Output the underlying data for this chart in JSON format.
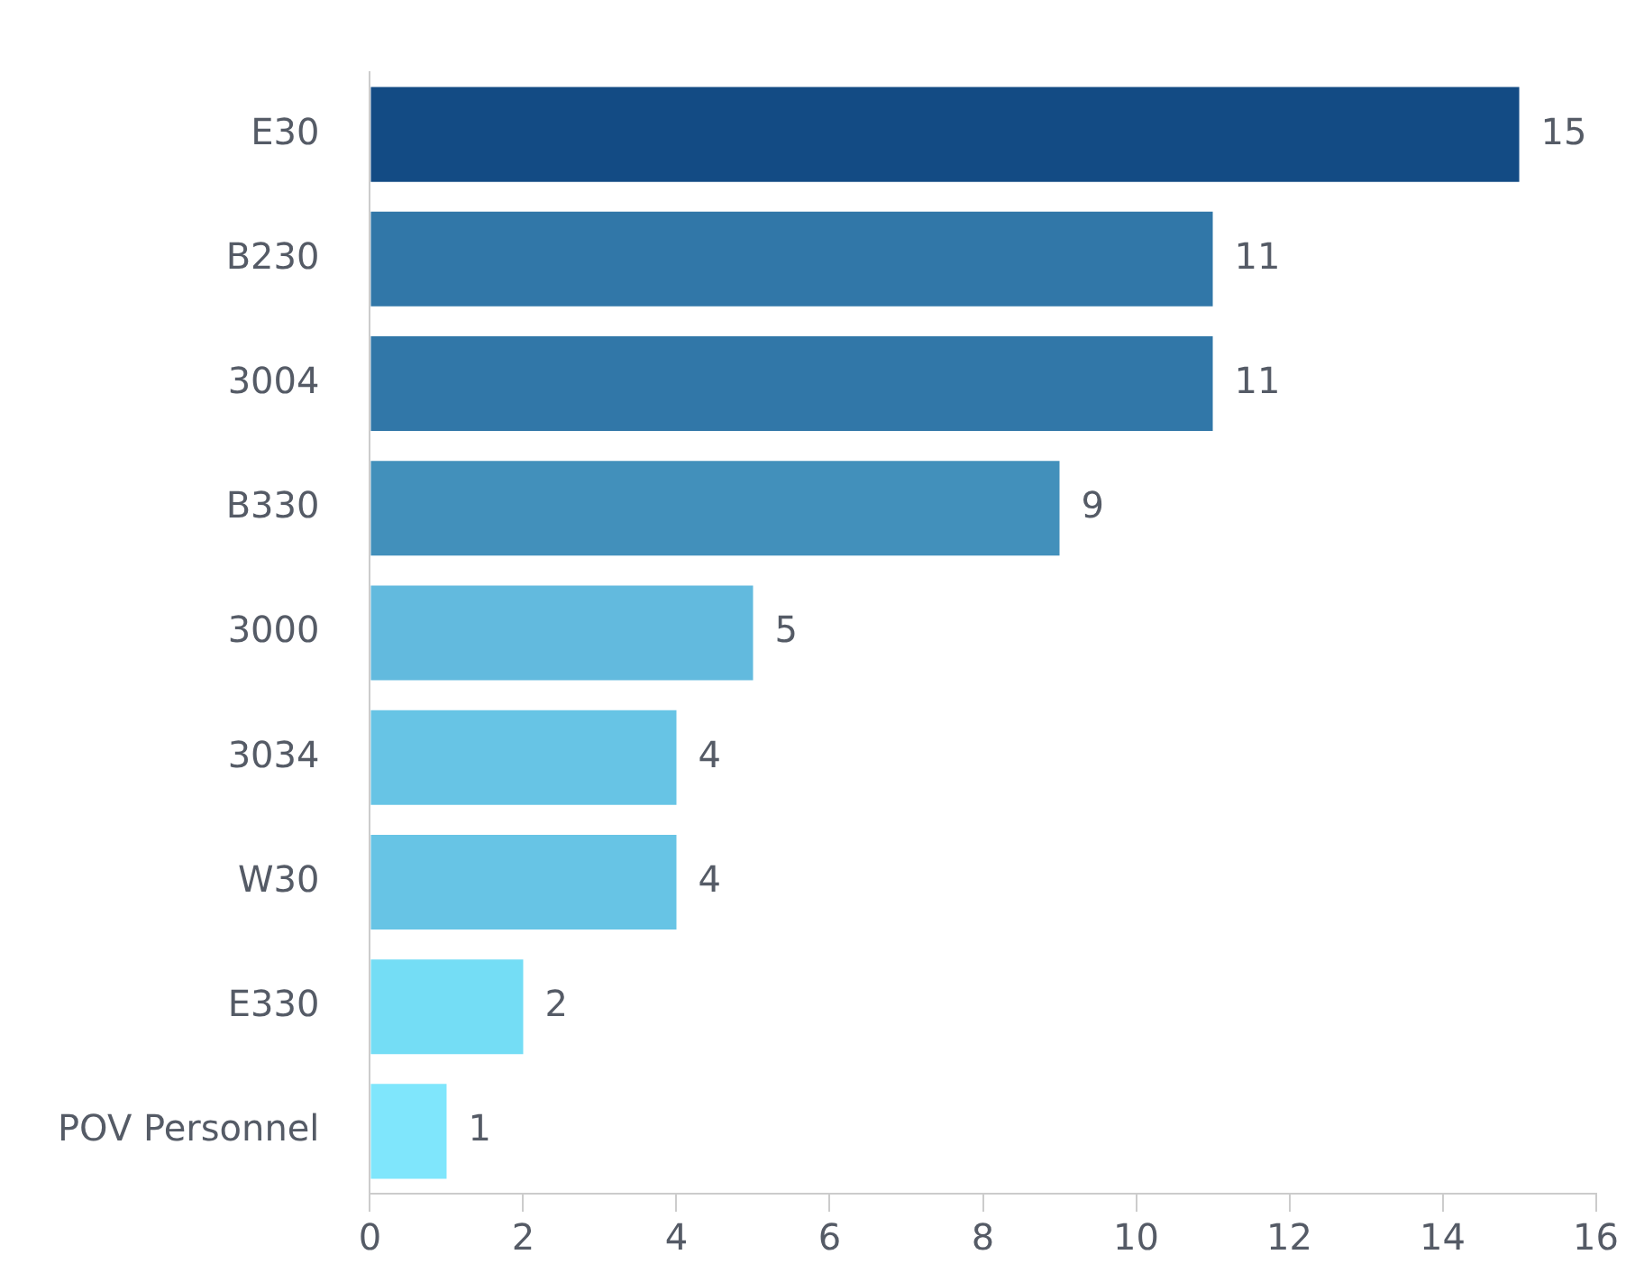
{
  "chart_data": {
    "type": "bar",
    "orientation": "horizontal",
    "categories": [
      "E30",
      "B230",
      "3004",
      "B330",
      "3000",
      "3034",
      "W30",
      "E330",
      "POV Personnel"
    ],
    "values": [
      15,
      11,
      11,
      9,
      5,
      4,
      4,
      2,
      1
    ],
    "colors": [
      "#134b84",
      "#3177a8",
      "#3177a8",
      "#4290bb",
      "#62bade",
      "#67c4e5",
      "#67c4e5",
      "#74ddf5",
      "#7fe6fc"
    ],
    "xlim": [
      0,
      16
    ],
    "xticks": [
      0,
      2,
      4,
      6,
      8,
      10,
      12,
      14,
      16
    ],
    "data_labels": true
  }
}
